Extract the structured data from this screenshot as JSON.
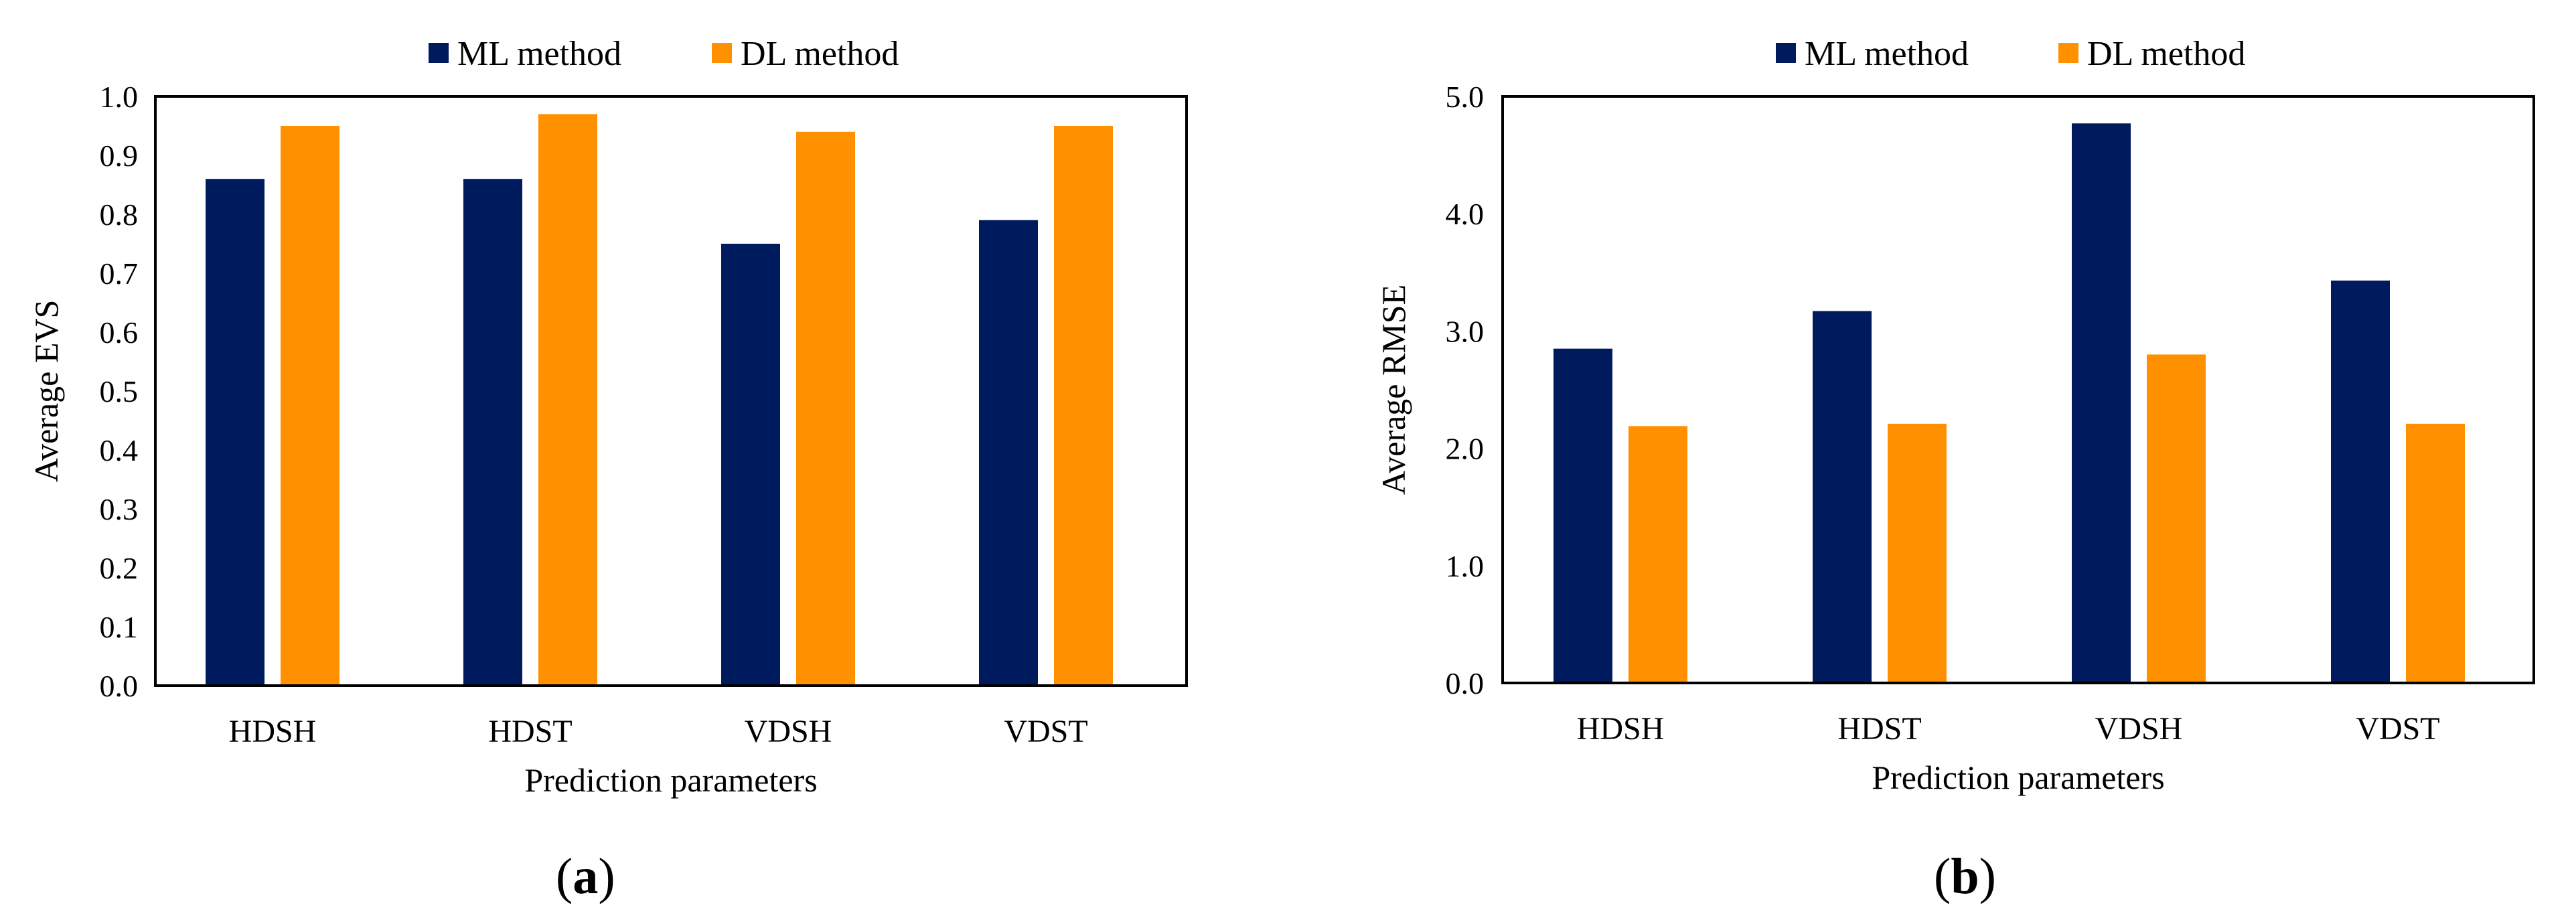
{
  "colors": {
    "ml": "#001a5e",
    "dl": "#ff9100"
  },
  "chart_data": [
    {
      "type": "bar",
      "panel": "a",
      "panel_open": "(",
      "panel_letter": "a",
      "panel_close": ")",
      "categories": [
        "HDSH",
        "HDST",
        "VDSH",
        "VDST"
      ],
      "series": [
        {
          "name": "ML method",
          "values": [
            0.86,
            0.86,
            0.75,
            0.79
          ]
        },
        {
          "name": "DL method",
          "values": [
            0.95,
            0.97,
            0.94,
            0.95
          ]
        }
      ],
      "yticks": [
        "0.0",
        "0.1",
        "0.2",
        "0.3",
        "0.4",
        "0.5",
        "0.6",
        "0.7",
        "0.8",
        "0.9",
        "1.0"
      ],
      "ylim": [
        0,
        1.0
      ],
      "xlabel": "Prediction parameters",
      "ylabel": "Average EVS",
      "legend_position": "top-center",
      "grid": false
    },
    {
      "type": "bar",
      "panel": "b",
      "panel_open": "(",
      "panel_letter": "b",
      "panel_close": ")",
      "categories": [
        "HDSH",
        "HDST",
        "VDSH",
        "VDST"
      ],
      "series": [
        {
          "name": "ML method",
          "values": [
            2.85,
            3.17,
            4.77,
            3.43
          ]
        },
        {
          "name": "DL method",
          "values": [
            2.19,
            2.21,
            2.8,
            2.21
          ]
        }
      ],
      "yticks": [
        "0.0",
        "1.0",
        "2.0",
        "3.0",
        "4.0",
        "5.0"
      ],
      "ylim": [
        0,
        5.0
      ],
      "xlabel": "Prediction parameters",
      "ylabel": "Average RMSE",
      "legend_position": "top-center",
      "grid": false
    }
  ]
}
